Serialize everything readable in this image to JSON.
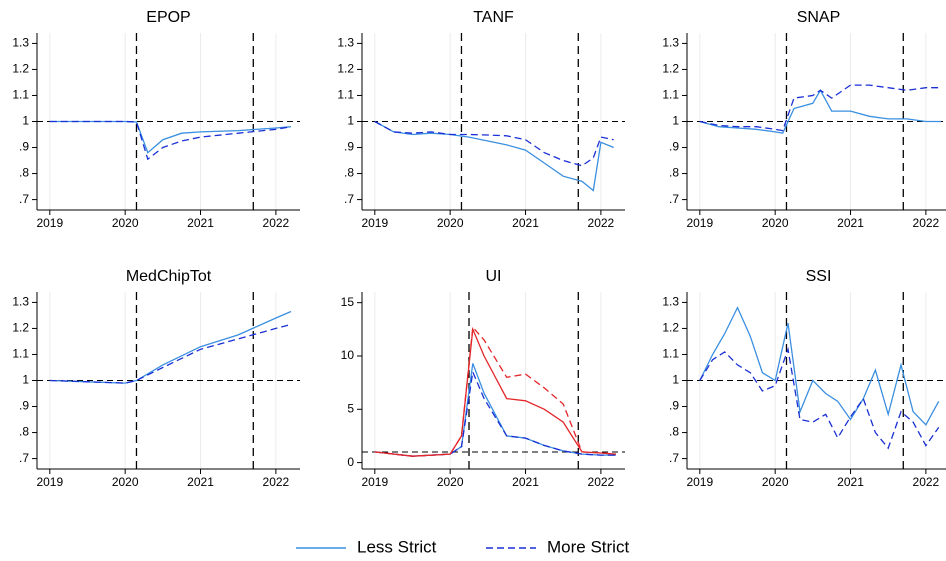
{
  "chart_data": [
    {
      "type": "line",
      "title": "EPOP",
      "x": [
        2019,
        2019.5,
        2020,
        2020.15,
        2020.3,
        2020.5,
        2020.75,
        2021,
        2021.5,
        2022,
        2022.2
      ],
      "series": [
        {
          "name": "Less Strict",
          "color": "#3a8fe0",
          "line_style": "solid",
          "values": [
            1,
            1,
            1,
            0.998,
            0.88,
            0.93,
            0.955,
            0.96,
            0.965,
            0.975,
            0.98
          ]
        },
        {
          "name": "More Strict",
          "color": "#1a2fd6",
          "line_style": "dashed",
          "values": [
            1,
            1,
            1,
            0.998,
            0.855,
            0.9,
            0.925,
            0.94,
            0.955,
            0.97,
            0.98
          ]
        }
      ],
      "xlim": [
        2018.83,
        2022.32
      ],
      "xticks": [
        2019,
        2020,
        2021,
        2022
      ],
      "ylim": [
        0.66,
        1.34
      ],
      "yticks": [
        {
          "value": 0.7,
          "label": ".7"
        },
        {
          "value": 0.8,
          "label": ".8"
        },
        {
          "value": 0.9,
          "label": ".9"
        },
        1,
        1.1,
        1.2,
        1.3
      ],
      "vlines": [
        2020.15,
        2021.7
      ],
      "hline": 1,
      "grid": true
    },
    {
      "type": "line",
      "title": "TANF",
      "x": [
        2019,
        2019.25,
        2019.5,
        2019.75,
        2020,
        2020.25,
        2020.5,
        2020.75,
        2021,
        2021.25,
        2021.5,
        2021.75,
        2021.9,
        2022,
        2022.17
      ],
      "series": [
        {
          "name": "Less Strict",
          "color": "#3a8fe0",
          "line_style": "solid",
          "values": [
            1,
            0.96,
            0.95,
            0.955,
            0.95,
            0.94,
            0.925,
            0.91,
            0.89,
            0.84,
            0.79,
            0.77,
            0.735,
            0.92,
            0.9
          ]
        },
        {
          "name": "More Strict",
          "color": "#1a2fd6",
          "line_style": "dashed",
          "values": [
            1,
            0.96,
            0.955,
            0.96,
            0.95,
            0.95,
            0.948,
            0.945,
            0.93,
            0.88,
            0.85,
            0.83,
            0.86,
            0.94,
            0.93
          ]
        }
      ],
      "xlim": [
        2018.83,
        2022.32
      ],
      "xticks": [
        2019,
        2020,
        2021,
        2022
      ],
      "ylim": [
        0.66,
        1.34
      ],
      "yticks": [
        {
          "value": 0.7,
          "label": ".7"
        },
        {
          "value": 0.8,
          "label": ".8"
        },
        {
          "value": 0.9,
          "label": ".9"
        },
        1,
        1.1,
        1.2,
        1.3
      ],
      "vlines": [
        2020.15,
        2021.7
      ],
      "hline": 1,
      "grid": true
    },
    {
      "type": "line",
      "title": "SNAP",
      "x": [
        2019,
        2019.25,
        2019.5,
        2019.75,
        2020,
        2020.1,
        2020.25,
        2020.5,
        2020.6,
        2020.75,
        2021,
        2021.25,
        2021.5,
        2021.75,
        2022,
        2022.2
      ],
      "series": [
        {
          "name": "Less Strict",
          "color": "#3a8fe0",
          "line_style": "solid",
          "values": [
            1,
            0.98,
            0.975,
            0.97,
            0.96,
            0.955,
            1.05,
            1.07,
            1.12,
            1.04,
            1.04,
            1.02,
            1.01,
            1.01,
            1.0,
            1.0
          ]
        },
        {
          "name": "More Strict",
          "color": "#1a2fd6",
          "line_style": "dashed",
          "values": [
            1,
            0.985,
            0.98,
            0.98,
            0.97,
            0.965,
            1.09,
            1.1,
            1.12,
            1.09,
            1.14,
            1.14,
            1.13,
            1.12,
            1.13,
            1.13
          ]
        }
      ],
      "xlim": [
        2018.83,
        2022.32
      ],
      "xticks": [
        2019,
        2020,
        2021,
        2022
      ],
      "ylim": [
        0.66,
        1.34
      ],
      "yticks": [
        {
          "value": 0.7,
          "label": ".7"
        },
        {
          "value": 0.8,
          "label": ".8"
        },
        {
          "value": 0.9,
          "label": ".9"
        },
        1,
        1.1,
        1.2,
        1.3
      ],
      "vlines": [
        2020.15,
        2021.7
      ],
      "hline": 1,
      "grid": true
    },
    {
      "type": "line",
      "title": "MedChipTot",
      "x": [
        2019,
        2019.5,
        2020,
        2020.15,
        2020.5,
        2021,
        2021.5,
        2022,
        2022.2
      ],
      "series": [
        {
          "name": "Less Strict",
          "color": "#3a8fe0",
          "line_style": "solid",
          "values": [
            1,
            0.995,
            0.99,
            1.0,
            1.06,
            1.13,
            1.175,
            1.24,
            1.265
          ]
        },
        {
          "name": "More Strict",
          "color": "#1a2fd6",
          "line_style": "dashed",
          "values": [
            1,
            0.995,
            0.99,
            1.0,
            1.05,
            1.12,
            1.16,
            1.2,
            1.215
          ]
        }
      ],
      "xlim": [
        2018.83,
        2022.32
      ],
      "xticks": [
        2019,
        2020,
        2021,
        2022
      ],
      "ylim": [
        0.66,
        1.34
      ],
      "yticks": [
        {
          "value": 0.7,
          "label": ".7"
        },
        {
          "value": 0.8,
          "label": ".8"
        },
        {
          "value": 0.9,
          "label": ".9"
        },
        1,
        1.1,
        1.2,
        1.3
      ],
      "vlines": [
        2020.15,
        2021.7
      ],
      "hline": 1,
      "grid": true
    },
    {
      "type": "line",
      "title": "UI",
      "x": [
        2019,
        2019.5,
        2020,
        2020.15,
        2020.3,
        2020.45,
        2020.75,
        2021,
        2021.25,
        2021.5,
        2021.75,
        2022,
        2022.2
      ],
      "series": [
        {
          "name": "Less Strict",
          "color": "#3a8fe0",
          "line_style": "solid",
          "values": [
            1,
            0.6,
            0.8,
            1.5,
            9.3,
            6.5,
            2.5,
            2.3,
            1.6,
            1.1,
            0.8,
            0.7,
            0.7
          ]
        },
        {
          "name": "More Strict",
          "color": "#1a2fd6",
          "line_style": "dashed",
          "values": [
            1,
            0.6,
            0.8,
            1.5,
            8.5,
            6,
            2.5,
            2.3,
            1.6,
            1.1,
            0.8,
            0.7,
            0.7
          ]
        },
        {
          "color": "#e3262a",
          "line_style": "solid",
          "values": [
            1,
            0.6,
            0.8,
            2.5,
            12.5,
            10,
            6,
            5.8,
            5,
            3.8,
            1.0,
            0.9,
            0.8
          ]
        },
        {
          "color": "#e3262a",
          "line_style": "dashed",
          "values": [
            1,
            0.6,
            0.8,
            2.5,
            12.7,
            11.5,
            8,
            8.3,
            7,
            5.5,
            1.0,
            0.9,
            0.8
          ]
        }
      ],
      "xlim": [
        2018.83,
        2022.32
      ],
      "xticks": [
        2019,
        2020,
        2021,
        2022
      ],
      "ylim": [
        -0.6,
        16
      ],
      "yticks": [
        0,
        5,
        10,
        15
      ],
      "vlines": [
        2020.25,
        2021.7
      ],
      "hline": 1,
      "grid": true
    },
    {
      "type": "line",
      "title": "SSI",
      "x": [
        2019,
        2019.17,
        2019.33,
        2019.5,
        2019.67,
        2019.83,
        2020,
        2020.17,
        2020.33,
        2020.5,
        2020.67,
        2020.83,
        2021,
        2021.17,
        2021.33,
        2021.5,
        2021.67,
        2021.83,
        2022,
        2022.17
      ],
      "series": [
        {
          "name": "Less Strict",
          "color": "#3a8fe0",
          "line_style": "solid",
          "values": [
            1,
            1.1,
            1.18,
            1.28,
            1.17,
            1.03,
            1.0,
            1.22,
            0.88,
            1.0,
            0.95,
            0.92,
            0.85,
            0.93,
            1.04,
            0.87,
            1.06,
            0.88,
            0.83,
            0.92
          ]
        },
        {
          "name": "More Strict",
          "color": "#1a2fd6",
          "line_style": "dashed",
          "values": [
            1,
            1.08,
            1.11,
            1.06,
            1.03,
            0.96,
            0.98,
            1.12,
            0.85,
            0.84,
            0.87,
            0.78,
            0.86,
            0.93,
            0.8,
            0.74,
            0.88,
            0.84,
            0.75,
            0.82
          ]
        }
      ],
      "xlim": [
        2018.83,
        2022.32
      ],
      "xticks": [
        2019,
        2020,
        2021,
        2022
      ],
      "ylim": [
        0.66,
        1.34
      ],
      "yticks": [
        {
          "value": 0.7,
          "label": ".7"
        },
        {
          "value": 0.8,
          "label": ".8"
        },
        {
          "value": 0.9,
          "label": ".9"
        },
        1,
        1.1,
        1.2,
        1.3
      ],
      "vlines": [
        2020.15,
        2021.7
      ],
      "hline": 1,
      "grid": true
    }
  ]
}
